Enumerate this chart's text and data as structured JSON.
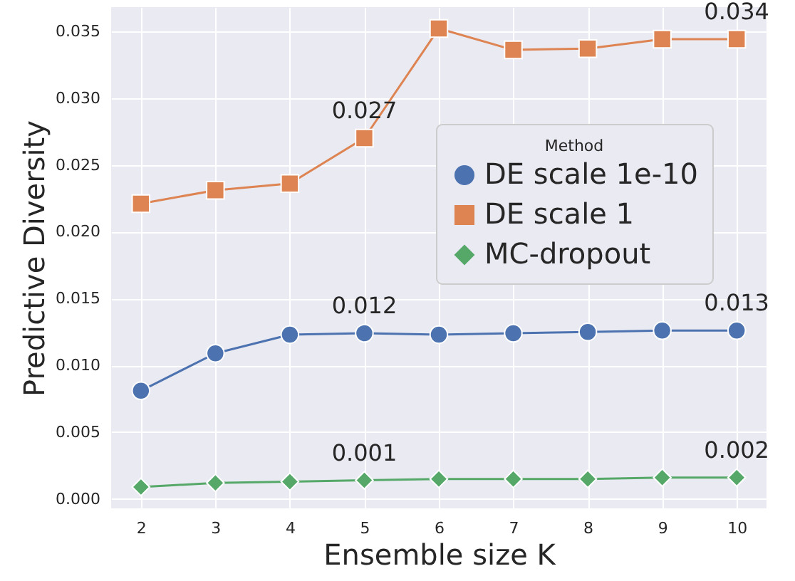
{
  "chart_data": {
    "type": "line",
    "xlabel": "Ensemble size K",
    "ylabel": "Predictive Diversity",
    "legend_title": "Method",
    "x": [
      2,
      3,
      4,
      5,
      6,
      7,
      8,
      9,
      10
    ],
    "series": [
      {
        "name": "DE scale 1e-10",
        "color": "#4c72b0",
        "marker": "circle",
        "values": [
          0.0081,
          0.0109,
          0.0123,
          0.0124,
          0.0123,
          0.0124,
          0.0125,
          0.0126,
          0.0126
        ],
        "value_labels": [
          null,
          null,
          null,
          "0.012",
          null,
          null,
          null,
          null,
          "0.013"
        ]
      },
      {
        "name": "DE scale 1",
        "color": "#dd8452",
        "marker": "square",
        "values": [
          0.0221,
          0.0231,
          0.0236,
          0.027,
          0.0352,
          0.0336,
          0.0337,
          0.0344,
          0.0344
        ],
        "value_labels": [
          null,
          null,
          null,
          "0.027",
          null,
          null,
          null,
          null,
          "0.034"
        ]
      },
      {
        "name": "MC-dropout",
        "color": "#55a868",
        "marker": "diamond",
        "values": [
          0.0009,
          0.0012,
          0.0013,
          0.0014,
          0.0015,
          0.0015,
          0.0015,
          0.0016,
          0.0016
        ],
        "value_labels": [
          null,
          null,
          null,
          "0.001",
          null,
          null,
          null,
          null,
          "0.002"
        ]
      }
    ],
    "xlim": [
      1.6,
      10.4
    ],
    "xticks": [
      2,
      3,
      4,
      5,
      6,
      7,
      8,
      9,
      10
    ],
    "ylim": [
      -0.0007,
      0.0368
    ],
    "yticks": [
      {
        "value": 0,
        "label": "0.000"
      },
      {
        "value": 0.005,
        "label": "0.005"
      },
      {
        "value": 0.01,
        "label": "0.010"
      },
      {
        "value": 0.015,
        "label": "0.015"
      },
      {
        "value": 0.02,
        "label": "0.020"
      },
      {
        "value": 0.025,
        "label": "0.025"
      },
      {
        "value": 0.03,
        "label": "0.030"
      },
      {
        "value": 0.035,
        "label": "0.035"
      }
    ],
    "grid": true,
    "legend": "right",
    "line_style": "solid"
  }
}
